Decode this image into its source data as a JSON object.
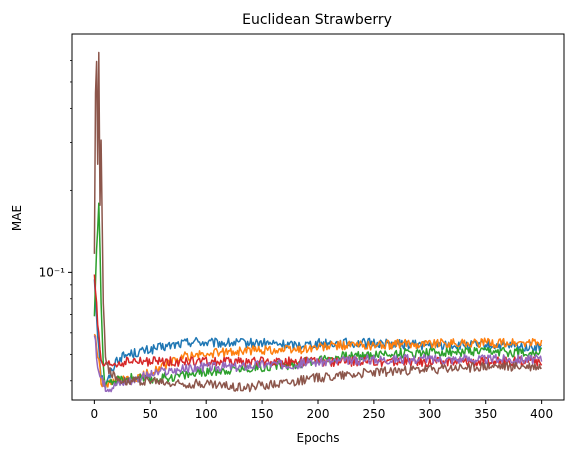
{
  "chart_data": {
    "type": "line",
    "title": "Euclidean Strawberry",
    "xlabel": "Epochs",
    "ylabel": "MAE",
    "xlim": [
      -20,
      420
    ],
    "ylim": [
      0.034,
      0.75
    ],
    "yscale": "log",
    "grid": false,
    "legend": "none",
    "xticks": [
      0,
      50,
      100,
      150,
      200,
      250,
      300,
      350,
      400
    ],
    "yticks_major": [
      {
        "value": 0.1,
        "label": "10⁻¹"
      }
    ],
    "yticks_minor": [
      0.04,
      0.05,
      0.06,
      0.07,
      0.08,
      0.09,
      0.2,
      0.3,
      0.4,
      0.5,
      0.6
    ],
    "series": [
      {
        "color": "#1f77b4",
        "x": [
          0,
          3,
          6,
          10,
          15,
          20,
          30,
          40,
          50,
          60,
          70,
          80,
          90,
          100,
          120,
          150,
          180,
          200,
          220,
          250,
          300,
          350,
          400
        ],
        "y": [
          0.095,
          0.06,
          0.042,
          0.038,
          0.043,
          0.048,
          0.05,
          0.051,
          0.052,
          0.053,
          0.054,
          0.055,
          0.056,
          0.055,
          0.055,
          0.055,
          0.054,
          0.055,
          0.055,
          0.055,
          0.054,
          0.054,
          0.053
        ]
      },
      {
        "color": "#ff7f0e",
        "x": [
          0,
          3,
          6,
          10,
          15,
          20,
          30,
          40,
          50,
          60,
          70,
          80,
          100,
          120,
          150,
          180,
          200,
          220,
          250,
          300,
          350,
          400
        ],
        "y": [
          0.06,
          0.05,
          0.04,
          0.038,
          0.039,
          0.04,
          0.04,
          0.041,
          0.043,
          0.045,
          0.047,
          0.049,
          0.05,
          0.051,
          0.052,
          0.052,
          0.053,
          0.054,
          0.054,
          0.055,
          0.055,
          0.055
        ]
      },
      {
        "color": "#2ca02c",
        "x": [
          0,
          2,
          4,
          6,
          8,
          10,
          15,
          20,
          30,
          40,
          50,
          60,
          80,
          100,
          120,
          150,
          180,
          200,
          220,
          250,
          300,
          350,
          400
        ],
        "y": [
          0.07,
          0.12,
          0.18,
          0.08,
          0.045,
          0.038,
          0.039,
          0.04,
          0.041,
          0.041,
          0.04,
          0.041,
          0.042,
          0.043,
          0.044,
          0.045,
          0.046,
          0.048,
          0.049,
          0.05,
          0.051,
          0.051,
          0.051
        ]
      },
      {
        "color": "#d62728",
        "x": [
          0,
          3,
          6,
          10,
          15,
          20,
          30,
          50,
          80,
          100,
          150,
          200,
          250,
          300,
          350,
          400
        ],
        "y": [
          0.1,
          0.065,
          0.046,
          0.045,
          0.046,
          0.046,
          0.047,
          0.047,
          0.047,
          0.047,
          0.047,
          0.047,
          0.047,
          0.047,
          0.047,
          0.047
        ]
      },
      {
        "color": "#9467bd",
        "x": [
          0,
          3,
          6,
          10,
          15,
          20,
          30,
          40,
          50,
          60,
          80,
          100,
          130,
          150,
          180,
          200,
          220,
          250,
          300,
          350,
          400
        ],
        "y": [
          0.06,
          0.045,
          0.04,
          0.038,
          0.038,
          0.039,
          0.04,
          0.041,
          0.042,
          0.043,
          0.044,
          0.045,
          0.045,
          0.046,
          0.046,
          0.047,
          0.047,
          0.048,
          0.048,
          0.048,
          0.048
        ]
      },
      {
        "color": "#8c564b",
        "x": [
          0,
          1,
          2,
          3,
          4,
          5,
          6,
          8,
          10,
          12,
          15,
          20,
          30,
          40,
          50,
          70,
          100,
          120,
          140,
          160,
          180,
          200,
          220,
          250,
          300,
          350,
          400
        ],
        "y": [
          0.12,
          0.45,
          0.6,
          0.25,
          0.62,
          0.18,
          0.3,
          0.08,
          0.05,
          0.045,
          0.042,
          0.041,
          0.04,
          0.04,
          0.04,
          0.039,
          0.039,
          0.038,
          0.038,
          0.039,
          0.04,
          0.041,
          0.042,
          0.043,
          0.044,
          0.045,
          0.045
        ]
      }
    ]
  }
}
